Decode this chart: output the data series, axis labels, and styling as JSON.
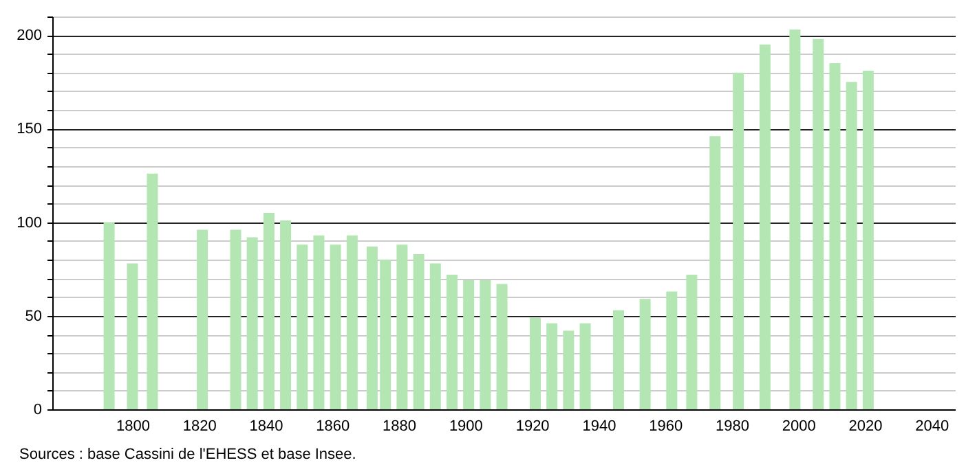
{
  "chart_data": {
    "type": "bar",
    "x": [
      1793,
      1800,
      1806,
      1821,
      1831,
      1836,
      1841,
      1846,
      1851,
      1856,
      1861,
      1866,
      1872,
      1876,
      1881,
      1886,
      1891,
      1896,
      1901,
      1906,
      1911,
      1921,
      1926,
      1931,
      1936,
      1946,
      1954,
      1962,
      1968,
      1975,
      1982,
      1990,
      1999,
      2006,
      2011,
      2016,
      2021
    ],
    "values": [
      100,
      78,
      126,
      96,
      96,
      92,
      105,
      101,
      88,
      93,
      88,
      93,
      87,
      80,
      88,
      83,
      78,
      72,
      69,
      69,
      67,
      49,
      46,
      42,
      46,
      53,
      59,
      63,
      72,
      146,
      180,
      195,
      203,
      198,
      185,
      175,
      181
    ],
    "color": "#b3e6b3",
    "xlim": [
      1778,
      2045
    ],
    "xticks": [
      1800,
      1820,
      1840,
      1860,
      1880,
      1900,
      1920,
      1940,
      1960,
      1980,
      2000,
      2020,
      2040
    ],
    "ylim": [
      0,
      210
    ],
    "yticks": [
      0,
      {
        "value": 10,
        "label": null
      },
      {
        "value": 20,
        "label": null
      },
      {
        "value": 30,
        "label": null
      },
      {
        "value": 40,
        "label": null
      },
      50,
      {
        "value": 60,
        "label": null
      },
      {
        "value": 70,
        "label": null
      },
      {
        "value": 80,
        "label": null
      },
      {
        "value": 90,
        "label": null
      },
      100,
      {
        "value": 110,
        "label": null
      },
      {
        "value": 120,
        "label": null
      },
      {
        "value": 130,
        "label": null
      },
      {
        "value": 140,
        "label": null
      },
      150,
      {
        "value": 160,
        "label": null
      },
      {
        "value": 170,
        "label": null
      },
      {
        "value": 180,
        "label": null
      },
      {
        "value": 190,
        "label": null
      },
      200,
      {
        "value": 210,
        "label": null
      }
    ],
    "grid": true,
    "annotations": [
      "Sources : base Cassini de l'EHESS et base Insee."
    ]
  }
}
